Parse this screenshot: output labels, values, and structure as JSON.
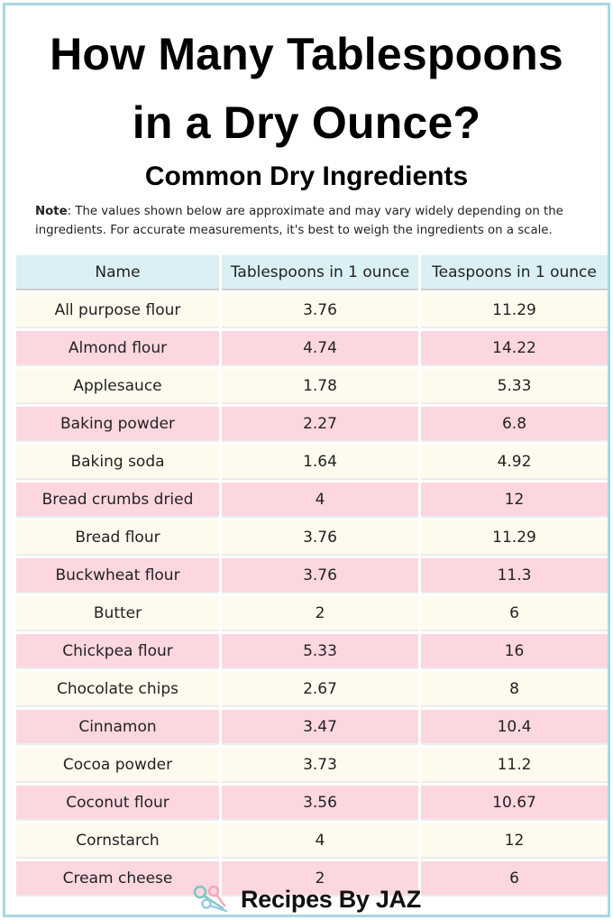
{
  "header": {
    "title_line1": "How Many Tablespoons",
    "title_line2": "in a Dry Ounce?",
    "subtitle": "Common Dry Ingredients"
  },
  "note": {
    "label": "Note",
    "text": ": The values shown below are approximate and may vary widely depending on the ingredients. For accurate measurements, it's best to weigh the ingredients on a scale."
  },
  "table": {
    "headers": [
      "Name",
      "Tablespoons in 1 ounce",
      "Teaspoons in 1 ounce"
    ],
    "rows": [
      [
        "All purpose flour",
        "3.76",
        "11.29"
      ],
      [
        "Almond flour",
        "4.74",
        "14.22"
      ],
      [
        "Applesauce",
        "1.78",
        "5.33"
      ],
      [
        "Baking powder",
        "2.27",
        "6.8"
      ],
      [
        "Baking soda",
        "1.64",
        "4.92"
      ],
      [
        "Bread crumbs dried",
        "4",
        "12"
      ],
      [
        "Bread flour",
        "3.76",
        "11.29"
      ],
      [
        "Buckwheat flour",
        "3.76",
        "11.3"
      ],
      [
        "Butter",
        "2",
        "6"
      ],
      [
        "Chickpea flour",
        "5.33",
        "16"
      ],
      [
        "Chocolate chips",
        "2.67",
        "8"
      ],
      [
        "Cinnamon",
        "3.47",
        "10.4"
      ],
      [
        "Cocoa powder",
        "3.73",
        "11.2"
      ],
      [
        "Coconut flour",
        "3.56",
        "10.67"
      ],
      [
        "Cornstarch",
        "4",
        "12"
      ],
      [
        "Cream cheese",
        "2",
        "6"
      ]
    ]
  },
  "footer": {
    "brand": "Recipes By JAZ",
    "icon": "measuring-spoons-icon"
  },
  "colors": {
    "border": "#a9d7df",
    "header_bg": "#daf0f4",
    "row_cream": "#fefaee",
    "row_pink": "#fdd7df"
  }
}
